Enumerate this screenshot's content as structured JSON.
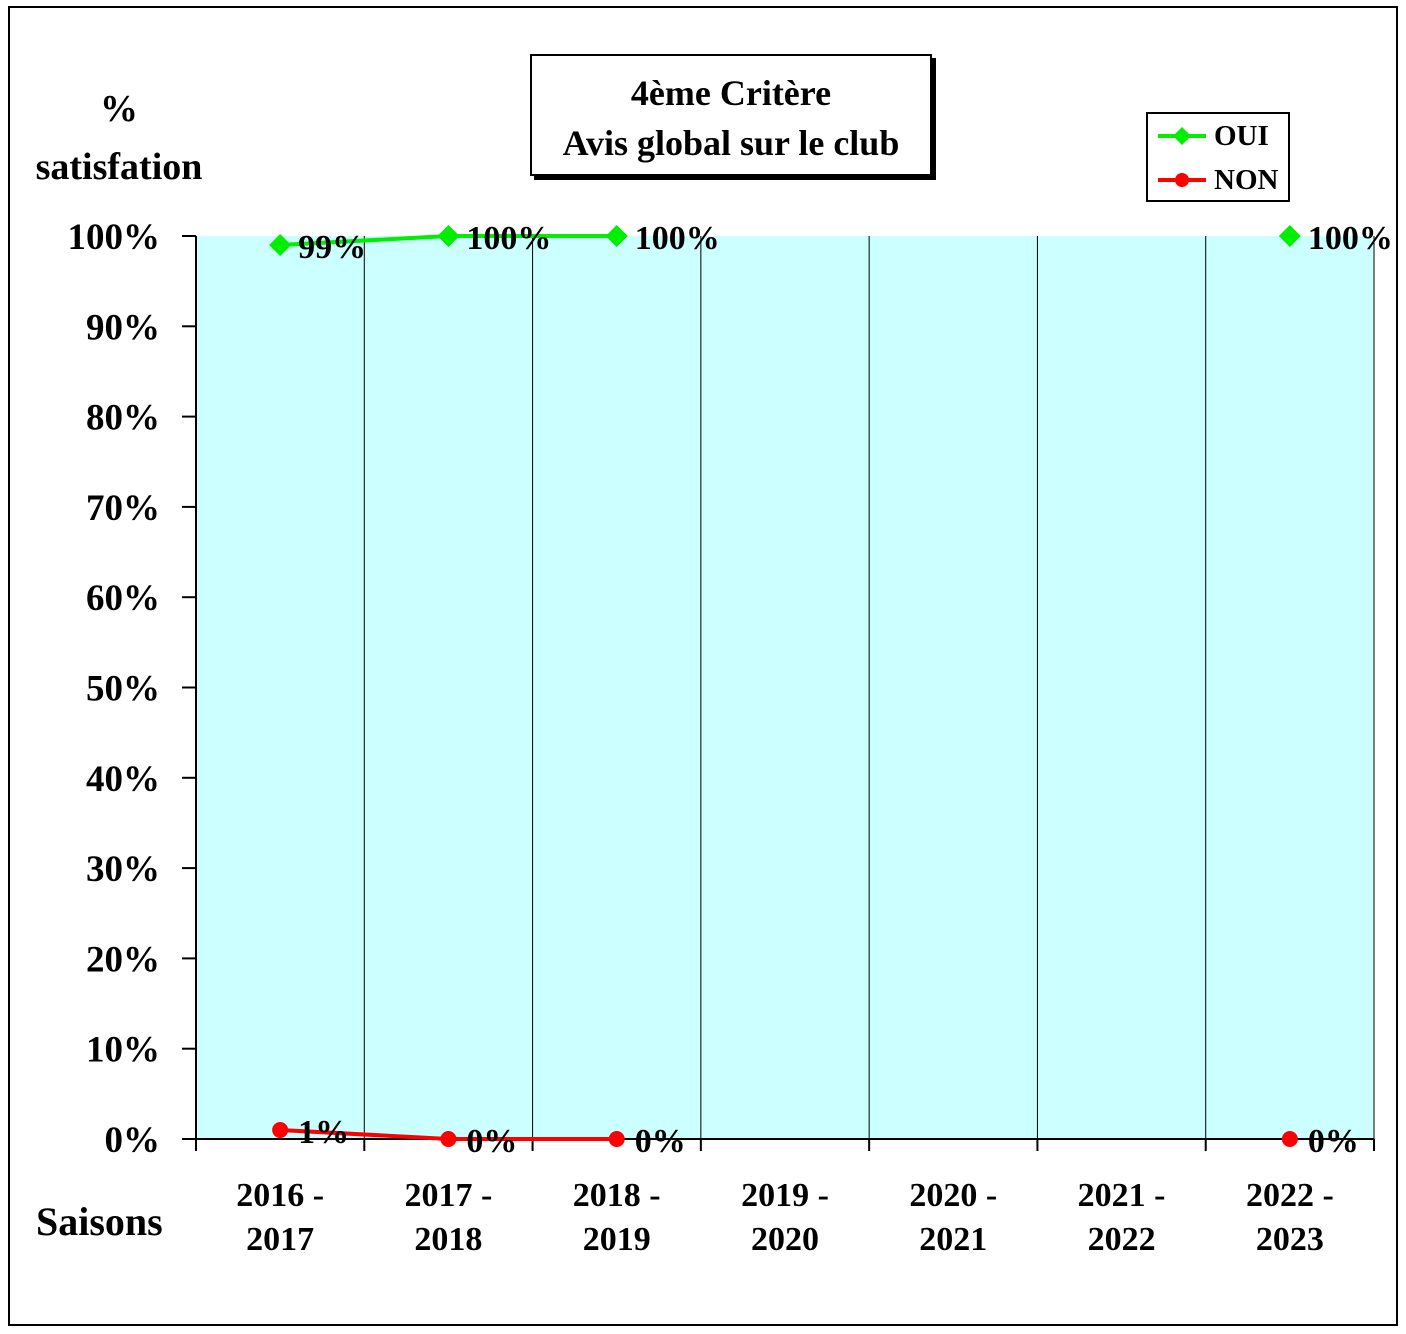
{
  "title": {
    "line1": "4ème  Critère",
    "line2": "Avis global sur le club"
  },
  "axis": {
    "ylabel_line1": "%",
    "ylabel_line2": "satisfation",
    "xlabel": "Saisons"
  },
  "legend": [
    {
      "label": "OUI",
      "color": "#00ee00",
      "marker": "diamond"
    },
    {
      "label": "NON",
      "color": "#ff0000",
      "marker": "circle"
    }
  ],
  "colors": {
    "plot_background": "#ccffff",
    "grid": "#000000"
  },
  "chart_data": {
    "type": "line",
    "categories": [
      [
        "2016 -",
        "2017"
      ],
      [
        "2017 -",
        "2018"
      ],
      [
        "2018 -",
        "2019"
      ],
      [
        "2019 -",
        "2020"
      ],
      [
        "2020 -",
        "2021"
      ],
      [
        "2021 -",
        "2022"
      ],
      [
        "2022 -",
        "2023"
      ]
    ],
    "series": [
      {
        "name": "OUI",
        "values": [
          99,
          100,
          100,
          null,
          null,
          null,
          100
        ],
        "labels": [
          "99%",
          "100%",
          "100%",
          null,
          null,
          null,
          "100%"
        ]
      },
      {
        "name": "NON",
        "values": [
          1,
          0,
          0,
          null,
          null,
          null,
          0
        ],
        "labels": [
          "1%",
          "0%",
          "0%",
          null,
          null,
          null,
          "0%"
        ]
      }
    ],
    "ylim": [
      0,
      100
    ],
    "yticks": [
      "0%",
      "10%",
      "20%",
      "30%",
      "40%",
      "50%",
      "60%",
      "70%",
      "80%",
      "90%",
      "100%"
    ],
    "xlabel": "Saisons",
    "ylabel": "% satisfation",
    "legend_position": "top-right",
    "grid": "vertical category lines"
  }
}
